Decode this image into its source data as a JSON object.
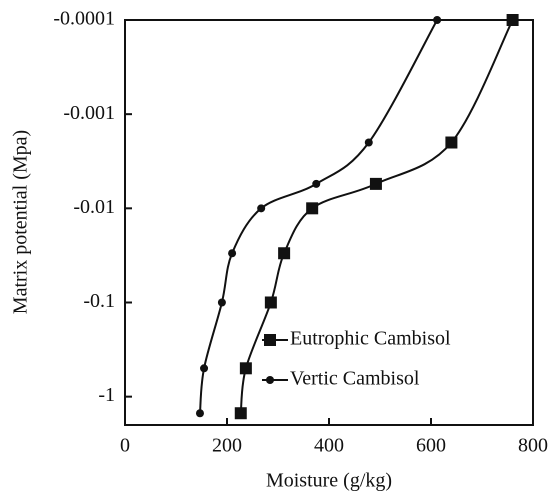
{
  "chart_data": {
    "type": "line",
    "x_label": "Moisture (g/kg)",
    "y_label": "Matrix potential (Mpa)",
    "yscale": "log",
    "xlim": [
      0,
      800
    ],
    "xticks": [
      0,
      200,
      400,
      600,
      800
    ],
    "ylim": [
      -2,
      -0.0001
    ],
    "yticks": [
      -0.0001,
      -0.001,
      -0.01,
      -0.1,
      -1
    ],
    "legend": "lower right",
    "series": [
      {
        "name": "Eutrophic Cambisol",
        "color": "#111111",
        "marker": "square",
        "x": [
          760,
          640,
          492,
          367,
          312,
          286,
          237,
          227
        ],
        "values": [
          -0.0001,
          -0.002,
          -0.0055,
          -0.01,
          -0.03,
          -0.1,
          -0.5,
          -1.5
        ]
      },
      {
        "name": "Vertic Cambisol",
        "color": "#111111",
        "marker": "circle",
        "x": [
          612,
          478,
          375,
          267,
          210,
          190,
          155,
          147
        ],
        "values": [
          -0.0001,
          -0.002,
          -0.0055,
          -0.01,
          -0.03,
          -0.1,
          -0.5,
          -1.5
        ]
      }
    ]
  }
}
